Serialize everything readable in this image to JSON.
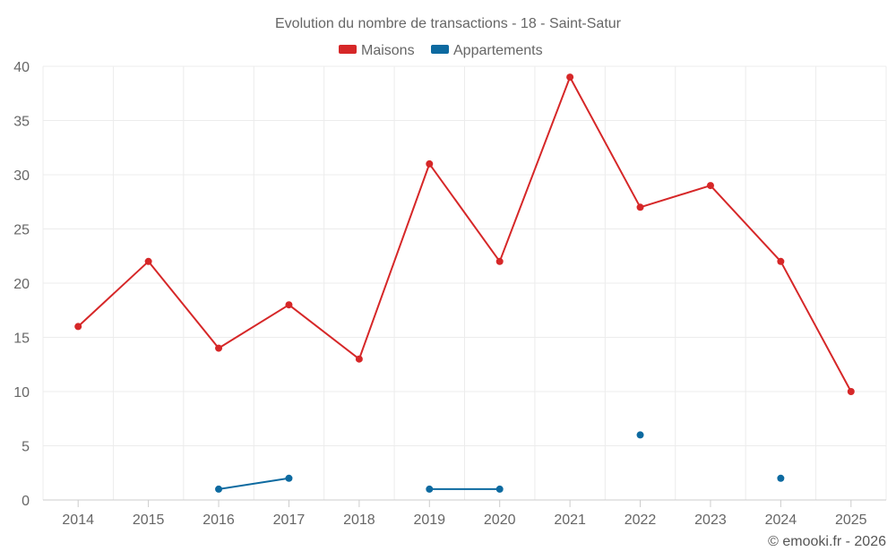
{
  "chart_data": {
    "type": "line",
    "title": "Evolution du nombre de transactions - 18 - Saint-Satur",
    "categories": [
      "2014",
      "2015",
      "2016",
      "2017",
      "2018",
      "2019",
      "2020",
      "2021",
      "2022",
      "2023",
      "2024",
      "2025"
    ],
    "ylim": [
      0,
      40
    ],
    "yticks": [
      0,
      5,
      10,
      15,
      20,
      25,
      30,
      35,
      40
    ],
    "grid": true,
    "legend_position": "top-center",
    "series": [
      {
        "name": "Maisons",
        "color": "#d62728",
        "values": [
          16,
          22,
          14,
          18,
          13,
          31,
          22,
          39,
          27,
          29,
          22,
          10
        ]
      },
      {
        "name": "Appartements",
        "color": "#0d6aa0",
        "values": [
          null,
          null,
          1,
          2,
          null,
          1,
          1,
          null,
          6,
          null,
          2,
          null
        ]
      }
    ]
  },
  "credit": "© emooki.fr - 2026"
}
